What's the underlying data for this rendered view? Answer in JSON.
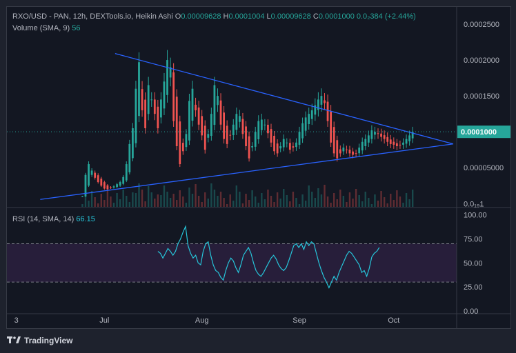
{
  "header": {
    "symbol": "RXO/USD - PAN, 12h, DEXTools.io, Heikin Ashi",
    "o_label": "O",
    "o_value": "0.00009628",
    "h_label": "H",
    "h_value": "0.0001004",
    "l_label": "L",
    "l_value": "0.00009628",
    "c_label": "C",
    "c_value": "0.0001000",
    "change": "0.0₂384 (+2.44%)",
    "volume_label": "Volume (SMA, 9)",
    "volume_value": "56",
    "rsi_label": "RSI (14, SMA, 14)",
    "rsi_value": "66.15"
  },
  "colors": {
    "up": "#26a69a",
    "down": "#ef5350",
    "trendline": "#2962ff",
    "rsi_line": "#26c6da",
    "rsi_band": "#2a1f3d",
    "price_tag": "#26a69a"
  },
  "footer": {
    "brand": "TradingView",
    "logo_icon": "tradingview-logo-icon"
  },
  "chart_data": [
    {
      "type": "candlestick",
      "title": "RXO/USD - PAN, 12h, DEXTools.io, Heikin Ashi",
      "y_ticks": [
        "0.0002500",
        "0.0002000",
        "0.0001500",
        "0.0001000",
        "0.00005000",
        "0.0₁₉1"
      ],
      "y_tick_values": [
        0.00025,
        0.0002,
        0.00015,
        0.0001,
        5e-05,
        0.0
      ],
      "ylim": [
        -4.5e-06,
        0.000274
      ],
      "x_ticks": [
        "3",
        "Jul",
        "Aug",
        "Sep",
        "Oct"
      ],
      "x_tick_days": [
        3,
        31,
        62,
        93,
        123
      ],
      "x_range_days": [
        0,
        143
      ],
      "last_price": "0.0001000",
      "trendlines": [
        {
          "from": [
            10.6,
            5.8e-06
          ],
          "to": [
            141.9,
            8.31e-05
          ]
        },
        {
          "from": [
            34.4,
            0.000209
          ],
          "to": [
            141.9,
            8.31e-05
          ]
        }
      ],
      "closes": [
        1e-05,
        4e-05,
        5.5e-05,
        4.6e-05,
        3.6e-05,
        3e-05,
        2.5e-05,
        2.1e-05,
        2e-05,
        2.2e-05,
        2.4e-05,
        2.7e-05,
        3e-05,
        3.7e-05,
        5.5e-05,
        8.3e-05,
        0.000105,
        0.00016,
        0.000197,
        0.00013,
        0.000105,
        0.000165,
        0.000145,
        0.000125,
        0.000105,
        0.000145,
        0.00017,
        0.0002,
        0.00019,
        0.000115,
        8e-05,
        5.5e-05,
        7.3e-05,
        9.7e-05,
        0.000143,
        0.00016,
        0.00013,
        0.00011,
        9.5e-05,
        7.5e-05,
        9.7e-05,
        0.000125,
        0.000165,
        0.00015,
        0.00011,
        9e-05,
        8.3e-05,
        9.5e-05,
        0.00011,
        0.000125,
        0.000122,
        9.7e-05,
        8e-05,
        6.3e-05,
        8e-05,
        0.0001,
        0.000115,
        0.000117,
        0.00011,
        9.8e-05,
        8.5e-05,
        7.3e-05,
        7e-05,
        8e-05,
        9e-05,
        8.5e-05,
        7.5e-05,
        7.8e-05,
        8.5e-05,
        0.0001,
        0.000112,
        0.00012,
        0.000125,
        0.00013,
        0.000137,
        0.000145,
        0.00015,
        0.00014,
        0.000115,
        8.5e-05,
        7e-05,
        6.3e-05,
        7e-05,
        7.8e-05,
        7.5e-05,
        7e-05,
        6.8e-05,
        7e-05,
        7.8e-05,
        8.6e-05,
        9e-05,
        9.5e-05,
        0.000102,
        0.0001,
        9.7e-05,
        9.3e-05,
        9e-05,
        8.6e-05,
        8.3e-05,
        8.2e-05,
        8e-05,
        8.2e-05,
        8.5e-05,
        9e-05,
        9.5e-05,
        0.0001
      ],
      "candle_day_start": 24,
      "candle_day_step": 1.0
    },
    {
      "type": "line",
      "title": "RSI (14, SMA, 14)",
      "y_ticks": [
        "100.00",
        "75.00",
        "50.00",
        "25.00",
        "0.00"
      ],
      "y_tick_values": [
        100,
        75,
        50,
        25,
        0
      ],
      "ylim": [
        -3,
        107
      ],
      "bands": [
        30,
        70
      ],
      "last_value": 66.15,
      "values": [
        62,
        60,
        55,
        60,
        65,
        62,
        58,
        62,
        70,
        75,
        82,
        88,
        68,
        60,
        55,
        58,
        50,
        48,
        62,
        70,
        72,
        58,
        48,
        42,
        40,
        35,
        32,
        42,
        50,
        55,
        52,
        45,
        40,
        48,
        58,
        62,
        66,
        60,
        50,
        42,
        38,
        36,
        40,
        45,
        50,
        55,
        58,
        54,
        48,
        44,
        42,
        45,
        52,
        60,
        68,
        70,
        66,
        70,
        64,
        72,
        68,
        72,
        70,
        60,
        50,
        42,
        35,
        30,
        24,
        30,
        36,
        32,
        40,
        46,
        52,
        58,
        62,
        60,
        56,
        52,
        48,
        40,
        42,
        36,
        44,
        56,
        60,
        62,
        66
      ],
      "line_day_start": 48,
      "line_day_step": 0.8
    }
  ]
}
